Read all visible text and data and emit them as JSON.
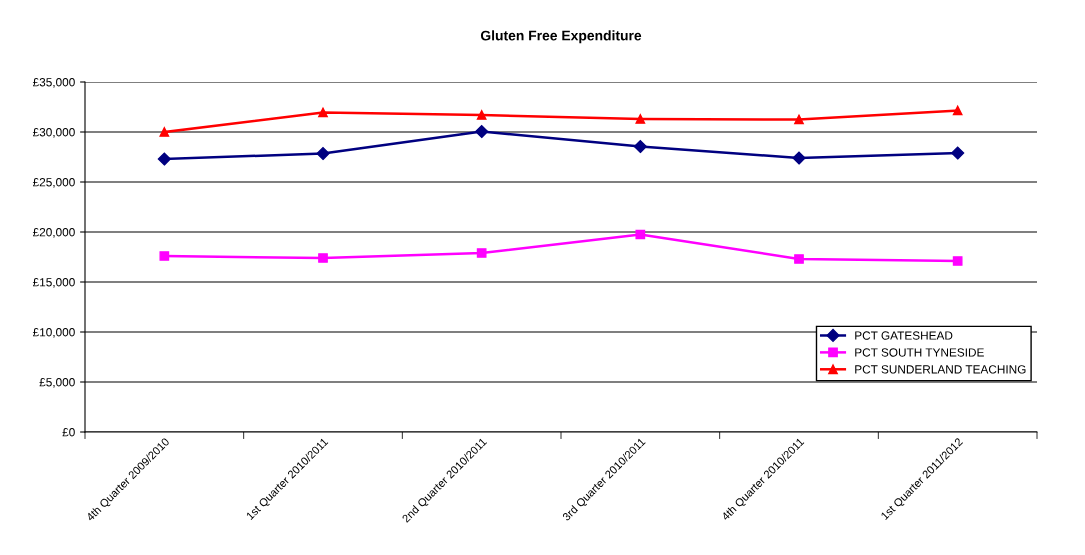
{
  "chart_data": {
    "type": "line",
    "title": "Gluten Free Expenditure",
    "categories": [
      "4th Quarter 2009/2010",
      "1st Quarter 2010/2011",
      "2nd Quarter 2010/2011",
      "3rd Quarter 2010/2011",
      "4th Quarter 2010/2011",
      "1st Quarter 2011/2012"
    ],
    "series": [
      {
        "name": "PCT GATESHEAD",
        "color": "#000080",
        "marker": "diamond",
        "values": [
          27300,
          27850,
          30050,
          28550,
          27400,
          27900
        ]
      },
      {
        "name": "PCT SOUTH TYNESIDE",
        "color": "#ff00ff",
        "marker": "square",
        "values": [
          17600,
          17400,
          17900,
          19750,
          17300,
          17100
        ]
      },
      {
        "name": "PCT SUNDERLAND TEACHING",
        "color": "#ff0000",
        "marker": "triangle",
        "values": [
          30000,
          31950,
          31700,
          31300,
          31250,
          32150
        ]
      }
    ],
    "ylim": [
      0,
      35000
    ],
    "yticks": [
      {
        "value": 0,
        "label": "£0"
      },
      {
        "value": 5000,
        "label": "£5,000"
      },
      {
        "value": 10000,
        "label": "£10,000"
      },
      {
        "value": 15000,
        "label": "£15,000"
      },
      {
        "value": 20000,
        "label": "£20,000"
      },
      {
        "value": 25000,
        "label": "£25,000"
      },
      {
        "value": 30000,
        "label": "£30,000"
      },
      {
        "value": 35000,
        "label": "£35,000"
      }
    ],
    "grid": "y",
    "legend": "bottom right",
    "line_style": "solid"
  }
}
